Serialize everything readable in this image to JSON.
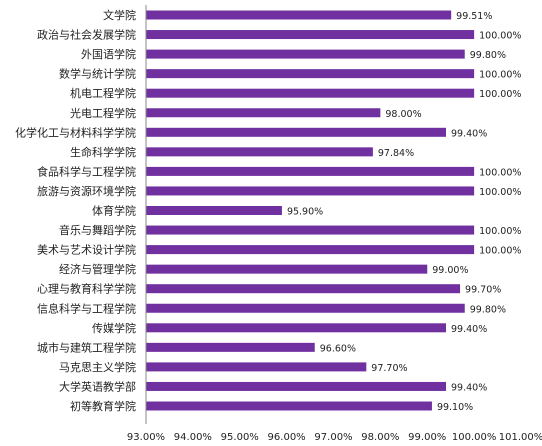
{
  "chart_data": {
    "type": "bar",
    "orientation": "horizontal",
    "title": "",
    "xlabel": "",
    "ylabel": "",
    "xlim": [
      93.0,
      101.0
    ],
    "bar_color": "#7030a0",
    "categories": [
      "文学院",
      "政治与社会发展学院",
      "外国语学院",
      "数学与统计学院",
      "机电工程学院",
      "光电工程学院",
      "化学化工与材料科学学院",
      "生命科学学院",
      "食品科学与工程学院",
      "旅游与资源环境学院",
      "体育学院",
      "音乐与舞蹈学院",
      "美术与艺术设计学院",
      "经济与管理学院",
      "心理与教育科学学院",
      "信息科学与工程学院",
      "传媒学院",
      "城市与建筑工程学院",
      "马克思主义学院",
      "大学英语教学部",
      "初等教育学院"
    ],
    "values": [
      99.51,
      100.0,
      99.8,
      100.0,
      100.0,
      98.0,
      99.4,
      97.84,
      100.0,
      100.0,
      95.9,
      100.0,
      100.0,
      99.0,
      99.7,
      99.8,
      99.4,
      96.6,
      97.7,
      99.4,
      99.1
    ],
    "value_labels": [
      "99.51%",
      "100.00%",
      "99.80%",
      "100.00%",
      "100.00%",
      "98.00%",
      "99.40%",
      "97.84%",
      "100.00%",
      "100.00%",
      "95.90%",
      "100.00%",
      "100.00%",
      "99.00%",
      "99.70%",
      "99.80%",
      "99.40%",
      "96.60%",
      "97.70%",
      "99.40%",
      "99.10%"
    ],
    "x_ticks": [
      93,
      94,
      95,
      96,
      97,
      98,
      99,
      100,
      101
    ],
    "x_tick_labels": [
      "93.00%",
      "94.00%",
      "95.00%",
      "96.00%",
      "97.00%",
      "98.00%",
      "99.00%",
      "100.00%",
      "101.00%"
    ],
    "grid": false,
    "legend": "none"
  }
}
